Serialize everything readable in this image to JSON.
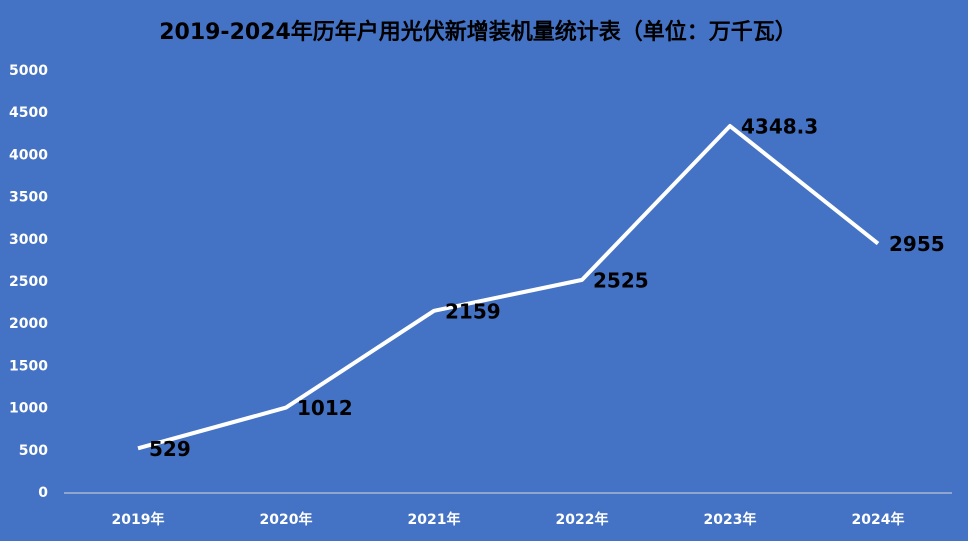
{
  "chart_data": {
    "type": "line",
    "title": "2019-2024年历年户用光伏新增装机量统计表（单位：万千瓦）",
    "categories": [
      "2019年",
      "2020年",
      "2021年",
      "2022年",
      "2023年",
      "2024年"
    ],
    "values": [
      529,
      1012,
      2159,
      2525,
      4348.3,
      2955
    ],
    "color": "#ffffff",
    "ylim": [
      0,
      5000
    ],
    "yticks": [
      0,
      500,
      1000,
      1500,
      2000,
      2500,
      3000,
      3500,
      4000,
      4500,
      5000
    ],
    "grid": false
  }
}
